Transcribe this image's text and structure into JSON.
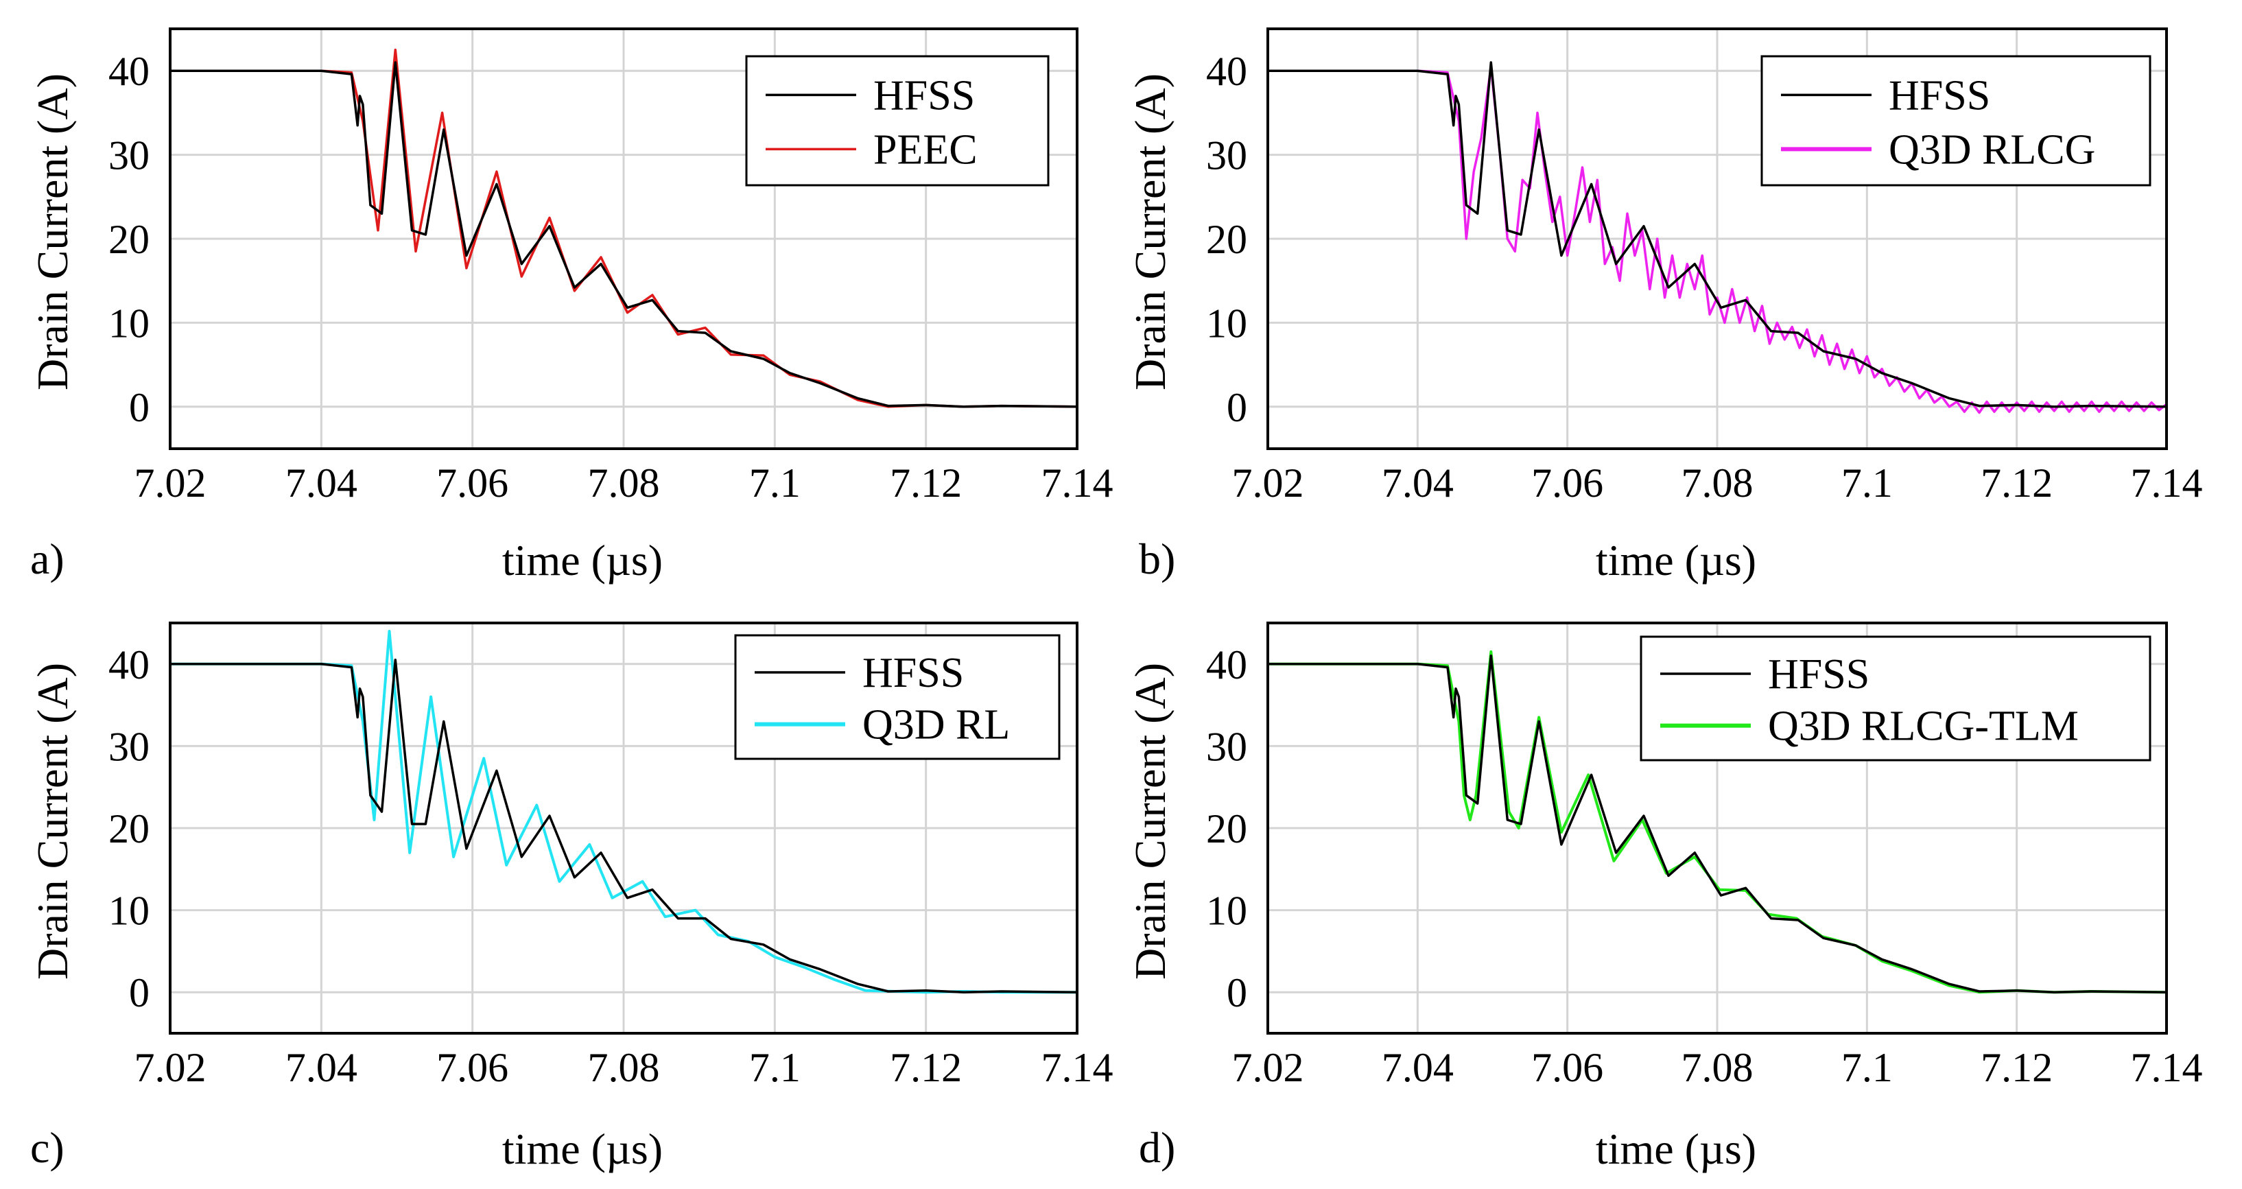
{
  "figure": {
    "panels": [
      {
        "id": "a",
        "letter": "a)",
        "reference_name": "HFSS",
        "compare_name": "PEEC"
      },
      {
        "id": "b",
        "letter": "b)",
        "reference_name": "HFSS",
        "compare_name": "Q3D RLCG"
      },
      {
        "id": "c",
        "letter": "c)",
        "reference_name": "HFSS",
        "compare_name": "Q3D RL"
      },
      {
        "id": "d",
        "letter": "d)",
        "reference_name": "HFSS",
        "compare_name": "Q3D RLCG-TLM"
      }
    ]
  },
  "chart_data": [
    {
      "panel": "a",
      "type": "line",
      "title": "",
      "xlabel": "time (µs)",
      "ylabel": "Drain Current (A)",
      "xlim": [
        7.02,
        7.14
      ],
      "ylim": [
        -5,
        45
      ],
      "xticks": [
        7.02,
        7.04,
        7.06,
        7.08,
        7.1,
        7.12,
        7.14
      ],
      "xtick_labels": [
        "7.02",
        "7.04",
        "7.06",
        "7.08",
        "7.1",
        "7.12",
        "7.14"
      ],
      "yticks": [
        0,
        10,
        20,
        30,
        40
      ],
      "ytick_labels": [
        "0",
        "10",
        "20",
        "30",
        "40"
      ],
      "grid": true,
      "legend_position": "top-right",
      "series": [
        {
          "name": "HFSS",
          "color": "#000000",
          "width": 3.5,
          "x": [
            7.02,
            7.04,
            7.044,
            7.0448,
            7.0451,
            7.0455,
            7.0465,
            7.048,
            7.0498,
            7.052,
            7.0538,
            7.0562,
            7.0592,
            7.0632,
            7.0665,
            7.0702,
            7.0735,
            7.077,
            7.0805,
            7.0838,
            7.0872,
            7.0908,
            7.0942,
            7.0985,
            7.102,
            7.106,
            7.111,
            7.115,
            7.12,
            7.125,
            7.13,
            7.14
          ],
          "y": [
            40,
            40,
            39.6,
            33.5,
            37,
            36,
            24,
            23,
            41,
            21,
            20.5,
            33,
            18,
            26.5,
            17,
            21.5,
            14.2,
            17,
            11.8,
            12.7,
            9.0,
            8.8,
            6.6,
            5.7,
            4.0,
            2.8,
            1.0,
            0.1,
            0.2,
            0.0,
            0.1,
            0.0
          ]
        },
        {
          "name": "PEEC",
          "color": "#e01b1b",
          "width": 3.5,
          "x": [
            7.02,
            7.04,
            7.044,
            7.0455,
            7.0475,
            7.0498,
            7.0525,
            7.056,
            7.0592,
            7.0632,
            7.0665,
            7.0702,
            7.0735,
            7.077,
            7.0805,
            7.0838,
            7.0872,
            7.0908,
            7.0942,
            7.0985,
            7.102,
            7.106,
            7.111,
            7.115,
            7.12,
            7.125,
            7.13,
            7.14
          ],
          "y": [
            40,
            40,
            39.8,
            34,
            21,
            42.5,
            18.5,
            35,
            16.5,
            28,
            15.5,
            22.5,
            13.8,
            17.8,
            11.2,
            13.3,
            8.6,
            9.4,
            6.2,
            6.1,
            3.8,
            3.0,
            0.8,
            0.0,
            0.2,
            0.0,
            0.1,
            0.0
          ]
        }
      ]
    },
    {
      "panel": "b",
      "type": "line",
      "title": "",
      "xlabel": "time (µs)",
      "ylabel": "Drain Current (A)",
      "xlim": [
        7.02,
        7.14
      ],
      "ylim": [
        -5,
        45
      ],
      "xticks": [
        7.02,
        7.04,
        7.06,
        7.08,
        7.1,
        7.12,
        7.14
      ],
      "xtick_labels": [
        "7.02",
        "7.04",
        "7.06",
        "7.08",
        "7.1",
        "7.12",
        "7.14"
      ],
      "yticks": [
        0,
        10,
        20,
        30,
        40
      ],
      "ytick_labels": [
        "0",
        "10",
        "20",
        "30",
        "40"
      ],
      "grid": true,
      "legend_position": "top-right",
      "series": [
        {
          "name": "HFSS",
          "color": "#000000",
          "width": 3.5,
          "x": [
            7.02,
            7.04,
            7.044,
            7.0448,
            7.0451,
            7.0455,
            7.0465,
            7.048,
            7.0498,
            7.052,
            7.0538,
            7.0562,
            7.0592,
            7.0632,
            7.0665,
            7.0702,
            7.0735,
            7.077,
            7.0805,
            7.0838,
            7.0872,
            7.0908,
            7.0942,
            7.0985,
            7.102,
            7.106,
            7.111,
            7.115,
            7.12,
            7.125,
            7.13,
            7.14
          ],
          "y": [
            40,
            40,
            39.6,
            33.5,
            37,
            36,
            24,
            23,
            41,
            21,
            20.5,
            33,
            18,
            26.5,
            17,
            21.5,
            14.2,
            17,
            11.8,
            12.7,
            9.0,
            8.8,
            6.6,
            5.7,
            4.0,
            2.8,
            1.0,
            0.1,
            0.2,
            0.0,
            0.1,
            0.0
          ]
        },
        {
          "name": "Q3D RLCG",
          "color": "#ee22ee",
          "width": 3.5,
          "x": [
            7.02,
            7.04,
            7.044,
            7.0455,
            7.0465,
            7.0475,
            7.0485,
            7.0498,
            7.051,
            7.052,
            7.053,
            7.054,
            7.055,
            7.056,
            7.057,
            7.058,
            7.059,
            7.06,
            7.061,
            7.062,
            7.063,
            7.064,
            7.065,
            7.066,
            7.067,
            7.068,
            7.069,
            7.07,
            7.071,
            7.072,
            7.073,
            7.074,
            7.075,
            7.076,
            7.077,
            7.078,
            7.079,
            7.08,
            7.081,
            7.082,
            7.083,
            7.084,
            7.085,
            7.086,
            7.087,
            7.088,
            7.089,
            7.09,
            7.091,
            7.092,
            7.093,
            7.094,
            7.095,
            7.096,
            7.097,
            7.098,
            7.099,
            7.1,
            7.101,
            7.102,
            7.103,
            7.104,
            7.105,
            7.106,
            7.107,
            7.108,
            7.109,
            7.11,
            7.111,
            7.112,
            7.113,
            7.114,
            7.115,
            7.116,
            7.117,
            7.118,
            7.119,
            7.12,
            7.121,
            7.122,
            7.123,
            7.124,
            7.125,
            7.126,
            7.127,
            7.128,
            7.129,
            7.13,
            7.131,
            7.132,
            7.133,
            7.134,
            7.135,
            7.136,
            7.137,
            7.138,
            7.139,
            7.14
          ],
          "y": [
            40,
            40,
            39.8,
            34,
            20,
            28,
            32,
            40.5,
            30,
            20,
            18.5,
            27,
            26,
            35,
            28,
            22,
            25,
            18,
            23,
            28.5,
            22,
            27,
            17,
            19,
            15,
            23,
            18,
            21,
            14,
            20,
            13,
            18,
            13,
            17,
            14,
            18,
            11,
            13,
            10,
            14,
            10,
            13,
            9,
            12,
            7.5,
            10,
            8,
            9.5,
            7,
            9.2,
            6,
            8.5,
            5,
            7.5,
            4.5,
            6.8,
            4,
            6,
            3.5,
            4.5,
            2.5,
            3.5,
            1.8,
            2.8,
            1.0,
            2.0,
            0.5,
            1.2,
            0.0,
            0.6,
            -0.6,
            0.5,
            -0.7,
            0.6,
            -0.6,
            0.5,
            -0.6,
            0.5,
            -0.5,
            0.6,
            -0.6,
            0.5,
            -0.5,
            0.6,
            -0.6,
            0.5,
            -0.5,
            0.6,
            -0.6,
            0.5,
            -0.5,
            0.6,
            -0.5,
            0.5,
            -0.5,
            0.5,
            -0.4,
            0.3
          ]
        }
      ]
    },
    {
      "panel": "c",
      "type": "line",
      "title": "",
      "xlabel": "time (µs)",
      "ylabel": "Drain Current (A)",
      "xlim": [
        7.02,
        7.14
      ],
      "ylim": [
        -5,
        45
      ],
      "xticks": [
        7.02,
        7.04,
        7.06,
        7.08,
        7.1,
        7.12,
        7.14
      ],
      "xtick_labels": [
        "7.02",
        "7.04",
        "7.06",
        "7.08",
        "7.1",
        "7.12",
        "7.14"
      ],
      "yticks": [
        0,
        10,
        20,
        30,
        40
      ],
      "ytick_labels": [
        "0",
        "10",
        "20",
        "30",
        "40"
      ],
      "grid": true,
      "legend_position": "top-right",
      "series": [
        {
          "name": "HFSS",
          "color": "#000000",
          "width": 3.5,
          "x": [
            7.02,
            7.04,
            7.044,
            7.0448,
            7.0451,
            7.0455,
            7.0465,
            7.048,
            7.0498,
            7.052,
            7.0538,
            7.0562,
            7.0592,
            7.0632,
            7.0665,
            7.0702,
            7.0735,
            7.077,
            7.0805,
            7.0838,
            7.0872,
            7.0908,
            7.0942,
            7.0985,
            7.102,
            7.106,
            7.111,
            7.115,
            7.12,
            7.125,
            7.13,
            7.14
          ],
          "y": [
            40,
            40,
            39.6,
            33.5,
            37,
            36,
            24,
            22,
            40.5,
            20.5,
            20.5,
            33,
            17.5,
            27,
            16.5,
            21.5,
            14,
            17,
            11.5,
            12.5,
            9.0,
            9.0,
            6.5,
            5.8,
            4.0,
            2.8,
            1.0,
            0.1,
            0.2,
            0.0,
            0.1,
            0.0
          ]
        },
        {
          "name": "Q3D RL",
          "color": "#22e4f2",
          "width": 4,
          "x": [
            7.02,
            7.04,
            7.044,
            7.0455,
            7.047,
            7.049,
            7.0517,
            7.0545,
            7.0575,
            7.0615,
            7.0645,
            7.0685,
            7.0715,
            7.0755,
            7.0785,
            7.0825,
            7.0855,
            7.0895,
            7.0925,
            7.0965,
            7.1,
            7.104,
            7.108,
            7.112,
            7.116,
            7.12,
            7.125,
            7.13,
            7.14
          ],
          "y": [
            40,
            40,
            39.8,
            33,
            21,
            44,
            17,
            36,
            16.5,
            28.5,
            15.5,
            22.8,
            13.5,
            18,
            11.5,
            13.5,
            9.2,
            10,
            7,
            6.2,
            4.3,
            3.0,
            1.5,
            0.2,
            0.1,
            0.0,
            0.1,
            0.0,
            0.0
          ]
        }
      ]
    },
    {
      "panel": "d",
      "type": "line",
      "title": "",
      "xlabel": "time (µs)",
      "ylabel": "Drain Current (A)",
      "xlim": [
        7.02,
        7.14
      ],
      "ylim": [
        -5,
        45
      ],
      "xticks": [
        7.02,
        7.04,
        7.06,
        7.08,
        7.1,
        7.12,
        7.14
      ],
      "xtick_labels": [
        "7.02",
        "7.04",
        "7.06",
        "7.08",
        "7.1",
        "7.12",
        "7.14"
      ],
      "yticks": [
        0,
        10,
        20,
        30,
        40
      ],
      "ytick_labels": [
        "0",
        "10",
        "20",
        "30",
        "40"
      ],
      "grid": true,
      "legend_position": "top-right",
      "series": [
        {
          "name": "HFSS",
          "color": "#000000",
          "width": 3.5,
          "x": [
            7.02,
            7.04,
            7.044,
            7.0448,
            7.0451,
            7.0455,
            7.0465,
            7.048,
            7.0498,
            7.052,
            7.0538,
            7.0562,
            7.0592,
            7.0632,
            7.0665,
            7.0702,
            7.0735,
            7.077,
            7.0805,
            7.0838,
            7.0872,
            7.0908,
            7.0942,
            7.0985,
            7.102,
            7.106,
            7.111,
            7.115,
            7.12,
            7.125,
            7.13,
            7.14
          ],
          "y": [
            40,
            40,
            39.6,
            33.5,
            37,
            36,
            24,
            23,
            41,
            21,
            20.5,
            33,
            18,
            26.5,
            17,
            21.5,
            14.2,
            17,
            11.8,
            12.7,
            9.0,
            8.8,
            6.6,
            5.7,
            4.0,
            2.8,
            1.0,
            0.1,
            0.2,
            0.0,
            0.1,
            0.0
          ]
        },
        {
          "name": "Q3D RLCG-TLM",
          "color": "#22e81a",
          "width": 4,
          "x": [
            7.02,
            7.04,
            7.044,
            7.0455,
            7.0462,
            7.047,
            7.0478,
            7.0498,
            7.0522,
            7.0535,
            7.0562,
            7.0592,
            7.0628,
            7.0662,
            7.07,
            7.0732,
            7.077,
            7.0803,
            7.0838,
            7.0868,
            7.0906,
            7.094,
            7.0985,
            7.102,
            7.106,
            7.111,
            7.115,
            7.12,
            7.125,
            7.13,
            7.14
          ],
          "y": [
            40,
            40,
            39.8,
            33,
            24,
            21,
            24,
            41.5,
            22,
            20,
            33.5,
            19.5,
            26.5,
            16,
            21,
            14.5,
            16.5,
            12.5,
            12.4,
            9.5,
            9.0,
            6.8,
            5.7,
            3.8,
            2.6,
            0.8,
            0.0,
            0.2,
            0.0,
            0.1,
            0.0
          ]
        }
      ]
    }
  ]
}
